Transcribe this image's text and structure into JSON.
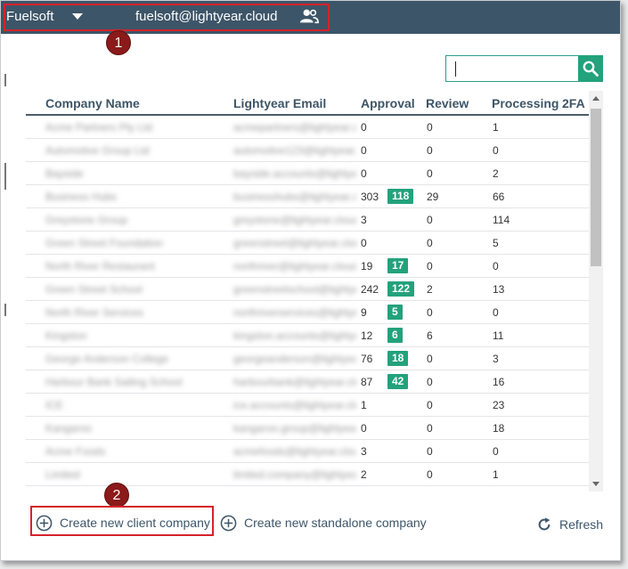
{
  "topbar": {
    "app_name": "Fuelsoft",
    "user_email": "fuelsoft@lightyear.cloud",
    "bg_color": "#3d5568"
  },
  "callouts": [
    "1",
    "2"
  ],
  "search": {
    "value": "",
    "placeholder": ""
  },
  "table": {
    "columns": [
      "Company Name",
      "Lightyear Email",
      "Approval",
      "Review",
      "Processing",
      "2FA"
    ],
    "rows": [
      {
        "company": "Acme Partners Pty Ltd",
        "email": "acmepartners@lightyear.cloud",
        "approval": "0",
        "badge": "",
        "review": "0",
        "processing": "1"
      },
      {
        "company": "Automotive Group Ltd",
        "email": "automotive123@lightyear.cloud",
        "approval": "0",
        "badge": "",
        "review": "0",
        "processing": "0"
      },
      {
        "company": "Bayside",
        "email": "bayside.accounts@lightyear.cloud",
        "approval": "0",
        "badge": "",
        "review": "0",
        "processing": "2"
      },
      {
        "company": "Business Hubs",
        "email": "businesshubs@lightyear.cloud",
        "approval": "303",
        "badge": "118",
        "review": "29",
        "processing": "66"
      },
      {
        "company": "Greystone Group",
        "email": "greystone@lightyear.cloud",
        "approval": "3",
        "badge": "",
        "review": "0",
        "processing": "114"
      },
      {
        "company": "Green Street Foundation",
        "email": "greenstreet@lightyear.cloud",
        "approval": "0",
        "badge": "",
        "review": "0",
        "processing": "5"
      },
      {
        "company": "North River Restaurant",
        "email": "northriver@lightyear.cloud",
        "approval": "19",
        "badge": "17",
        "review": "0",
        "processing": "0"
      },
      {
        "company": "Green Street School",
        "email": "greenstreetschool@lightyear.cloud",
        "approval": "242",
        "badge": "122",
        "review": "2",
        "processing": "13"
      },
      {
        "company": "North River Services",
        "email": "northriverservices@lightyear.cloud",
        "approval": "9",
        "badge": "5",
        "review": "0",
        "processing": "0"
      },
      {
        "company": "Kingston",
        "email": "kingston.accounts@lightyear.cloud",
        "approval": "12",
        "badge": "6",
        "review": "6",
        "processing": "11"
      },
      {
        "company": "George Anderson College",
        "email": "georgeanderson@lightyear.cloud",
        "approval": "76",
        "badge": "18",
        "review": "0",
        "processing": "3"
      },
      {
        "company": "Harbour Bank Sailing School",
        "email": "harbourbank@lightyear.cloud",
        "approval": "87",
        "badge": "42",
        "review": "0",
        "processing": "16"
      },
      {
        "company": "ICE",
        "email": "ice.accounts@lightyear.cloud",
        "approval": "1",
        "badge": "",
        "review": "0",
        "processing": "23"
      },
      {
        "company": "Kangaroo",
        "email": "kangaroo.group@lightyear.cloud",
        "approval": "0",
        "badge": "",
        "review": "0",
        "processing": "18"
      },
      {
        "company": "Acme Foods",
        "email": "acmefoods@lightyear.cloud",
        "approval": "3",
        "badge": "",
        "review": "0",
        "processing": "0"
      },
      {
        "company": "Limited",
        "email": "limited.company@lightyear.cloud",
        "approval": "2",
        "badge": "",
        "review": "0",
        "processing": "1"
      }
    ]
  },
  "actions": {
    "create_client": "Create new client company",
    "create_standalone": "Create new standalone company",
    "refresh": "Refresh"
  },
  "colors": {
    "accent": "#23a27c",
    "highlight": "#d5222a",
    "callout": "#8b1a1a"
  }
}
